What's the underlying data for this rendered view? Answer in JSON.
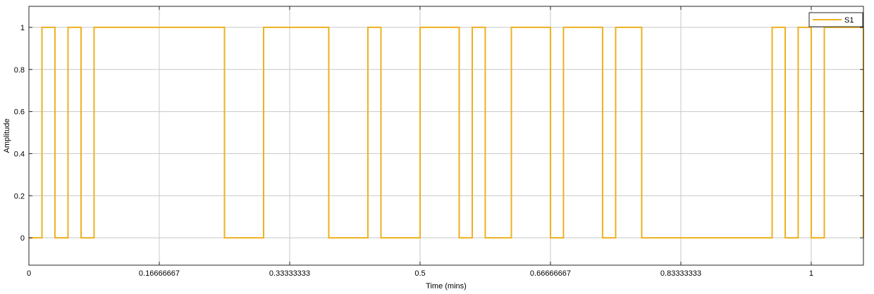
{
  "chart_data": {
    "type": "line",
    "step": true,
    "xlabel": "Time (mins)",
    "ylabel": "Amplitude",
    "xlim": [
      0,
      1.0667
    ],
    "ylim": [
      -0.13,
      1.1
    ],
    "x_ticks": [
      0,
      0.16666667,
      0.33333333,
      0.5,
      0.66666667,
      0.83333333,
      1
    ],
    "x_tick_labels": [
      "0",
      "0.16666667",
      "0.33333333",
      "0.5",
      "0.66666667",
      "0.83333333",
      "1"
    ],
    "y_ticks": [
      0,
      0.2,
      0.4,
      0.6,
      0.8,
      1
    ],
    "y_tick_labels": [
      "0",
      "0.2",
      "0.4",
      "0.6",
      "0.8",
      "1"
    ],
    "grid": true,
    "legend_position": "top-right",
    "series": [
      {
        "name": "S1",
        "color": "#edb120",
        "transitions": [
          [
            0,
            0
          ],
          [
            0.0167,
            1
          ],
          [
            0.0333,
            0
          ],
          [
            0.05,
            1
          ],
          [
            0.0667,
            0
          ],
          [
            0.0833,
            1
          ],
          [
            0.25,
            0
          ],
          [
            0.3,
            1
          ],
          [
            0.3833,
            0
          ],
          [
            0.4333,
            1
          ],
          [
            0.45,
            0
          ],
          [
            0.5,
            1
          ],
          [
            0.55,
            0
          ],
          [
            0.5667,
            1
          ],
          [
            0.5833,
            0
          ],
          [
            0.6167,
            1
          ],
          [
            0.6667,
            0
          ],
          [
            0.6833,
            1
          ],
          [
            0.7333,
            0
          ],
          [
            0.75,
            1
          ],
          [
            0.7833,
            0
          ],
          [
            0.95,
            1
          ],
          [
            0.9667,
            0
          ],
          [
            0.9833,
            1
          ],
          [
            1,
            0
          ],
          [
            1.0167,
            1
          ],
          [
            1.0667,
            0
          ]
        ]
      }
    ]
  }
}
